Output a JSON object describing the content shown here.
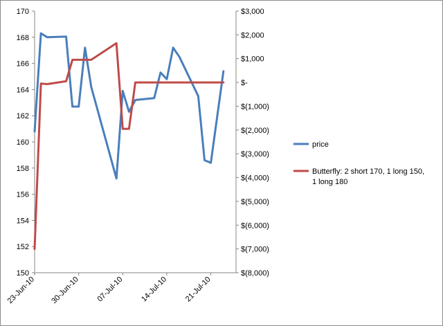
{
  "chart_data": {
    "type": "line",
    "x_dates": [
      "2010-06-23",
      "2010-06-24",
      "2010-06-25",
      "2010-06-28",
      "2010-06-29",
      "2010-06-30",
      "2010-07-01",
      "2010-07-02",
      "2010-07-06",
      "2010-07-07",
      "2010-07-08",
      "2010-07-09",
      "2010-07-12",
      "2010-07-13",
      "2010-07-14",
      "2010-07-15",
      "2010-07-16",
      "2010-07-19",
      "2010-07-20",
      "2010-07-21",
      "2010-07-22"
    ],
    "x_tick_labels": [
      "23-Jun-10",
      "30-Jun-10",
      "07-Jul-10",
      "14-Jul-10",
      "21-Jul-10"
    ],
    "x_tick_dates": [
      "2010-06-23",
      "2010-06-30",
      "2010-07-07",
      "2010-07-14",
      "2010-07-21"
    ],
    "xlim": [
      "2010-06-23",
      "2010-07-25"
    ],
    "y_left": {
      "lim": [
        150,
        170
      ],
      "ticks": [
        150,
        152,
        154,
        156,
        158,
        160,
        162,
        164,
        166,
        168,
        170
      ]
    },
    "y_right": {
      "lim": [
        -8000,
        3000
      ],
      "ticks": [
        -8000,
        -7000,
        -6000,
        -5000,
        -4000,
        -3000,
        -2000,
        -1000,
        0,
        1000,
        2000,
        3000
      ],
      "tick_labels": [
        "$(8,000)",
        "$(7,000)",
        "$(6,000)",
        "$(5,000)",
        "$(4,000)",
        "$(3,000)",
        "$(2,000)",
        "$(1,000)",
        "$-",
        "$1,000",
        "$2,000",
        "$3,000"
      ]
    },
    "series": [
      {
        "name": "price",
        "axis": "left",
        "color": "#4a7ebb",
        "points": [
          [
            "2010-06-23",
            160.8
          ],
          [
            "2010-06-24",
            168.3
          ],
          [
            "2010-06-25",
            168.0
          ],
          [
            "2010-06-28",
            168.05
          ],
          [
            "2010-06-29",
            162.7
          ],
          [
            "2010-06-30",
            162.7
          ],
          [
            "2010-07-01",
            167.2
          ],
          [
            "2010-07-02",
            164.2
          ],
          [
            "2010-07-06",
            157.2
          ],
          [
            "2010-07-07",
            163.9
          ],
          [
            "2010-07-08",
            162.3
          ],
          [
            "2010-07-09",
            163.2
          ],
          [
            "2010-07-12",
            163.35
          ],
          [
            "2010-07-13",
            165.3
          ],
          [
            "2010-07-14",
            164.8
          ],
          [
            "2010-07-15",
            167.2
          ],
          [
            "2010-07-16",
            166.5
          ],
          [
            "2010-07-19",
            163.5
          ],
          [
            "2010-07-20",
            158.6
          ],
          [
            "2010-07-21",
            158.4
          ],
          [
            "2010-07-23",
            165.4
          ]
        ]
      },
      {
        "name": "Butterfly: 2 short 170, 1 long 150, 1 long 180",
        "axis": "right",
        "color": "#be4b48",
        "points": [
          [
            "2010-06-23",
            -7000
          ],
          [
            "2010-06-24",
            -50
          ],
          [
            "2010-06-25",
            -70
          ],
          [
            "2010-06-28",
            50
          ],
          [
            "2010-06-29",
            950
          ],
          [
            "2010-06-30",
            950
          ],
          [
            "2010-07-01",
            950
          ],
          [
            "2010-07-02",
            950
          ],
          [
            "2010-07-06",
            1650
          ],
          [
            "2010-07-07",
            -1950
          ],
          [
            "2010-07-08",
            -1950
          ],
          [
            "2010-07-09",
            0
          ],
          [
            "2010-07-12",
            0
          ],
          [
            "2010-07-13",
            0
          ],
          [
            "2010-07-14",
            0
          ],
          [
            "2010-07-15",
            0
          ],
          [
            "2010-07-16",
            0
          ],
          [
            "2010-07-19",
            0
          ],
          [
            "2010-07-20",
            0
          ],
          [
            "2010-07-21",
            0
          ],
          [
            "2010-07-23",
            0
          ]
        ]
      }
    ],
    "legend": [
      {
        "label": "price",
        "color": "#4a7ebb"
      },
      {
        "label_lines": [
          "Butterfly: 2 short 170, 1 long 150,",
          "1 long 180"
        ],
        "color": "#be4b48"
      }
    ],
    "legend_position": "right",
    "grid": false
  }
}
